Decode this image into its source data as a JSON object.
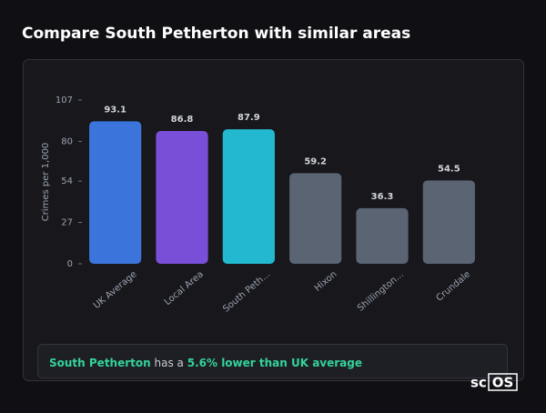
{
  "chart_data": {
    "type": "bar",
    "title": "Compare South Petherton with similar areas",
    "y_label": "Crimes per 1,000",
    "categories": [
      "UK Average",
      "Local Area",
      "South Peth...",
      "Hixon",
      "Shillington...",
      "Crundale"
    ],
    "values": [
      93.1,
      86.8,
      87.9,
      59.2,
      36.3,
      54.5
    ],
    "colors": [
      "#3b74da",
      "#7a4fd8",
      "#22b9d0",
      "#5b6473",
      "#5b6473",
      "#5b6473"
    ],
    "ylim": [
      0,
      107
    ],
    "yticks": [
      0,
      27,
      54,
      80,
      107
    ],
    "grid": false
  },
  "summary": {
    "place": "South Petherton",
    "middle": "has a",
    "highlight": "5.6% lower than UK average"
  },
  "logo": {
    "left": "sc",
    "right": "OS"
  }
}
